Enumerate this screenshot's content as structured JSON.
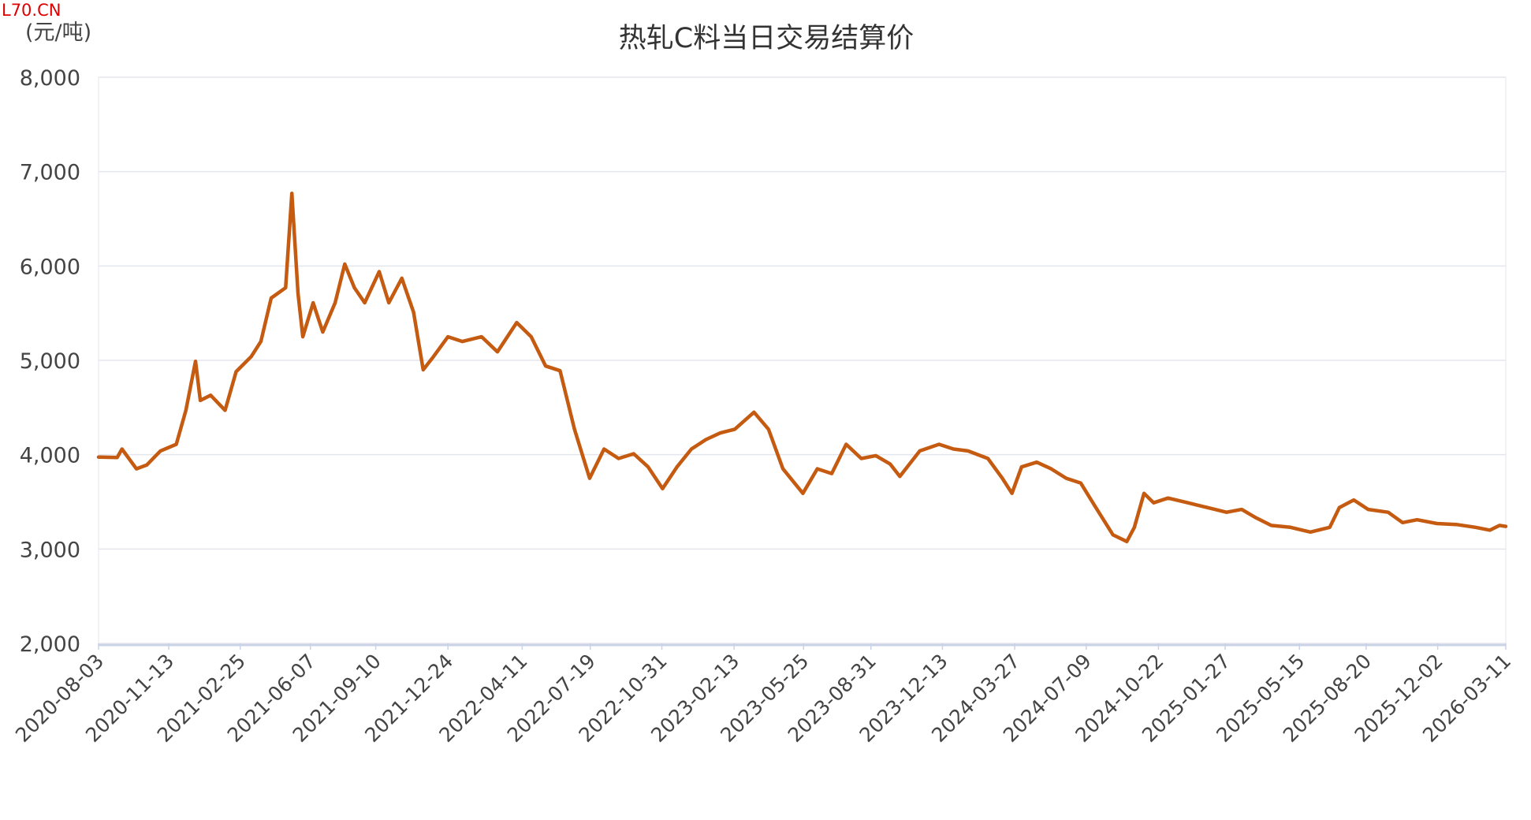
{
  "watermark": "L70.CN",
  "chart_data": {
    "type": "line",
    "title": "热轧C料当日交易结算价",
    "y_label": "(元/吨)",
    "x": [
      "2020-08-03",
      "2020-08-30",
      "2020-09-06",
      "2020-09-27",
      "2020-10-12",
      "2020-11-01",
      "2020-11-24",
      "2020-12-08",
      "2020-12-22",
      "2020-12-29",
      "2021-01-13",
      "2021-02-03",
      "2021-02-19",
      "2021-03-13",
      "2021-03-27",
      "2021-04-11",
      "2021-05-02",
      "2021-05-11",
      "2021-05-20",
      "2021-05-27",
      "2021-06-11",
      "2021-06-25",
      "2021-07-13",
      "2021-07-27",
      "2021-08-10",
      "2021-08-25",
      "2021-09-15",
      "2021-09-29",
      "2021-10-18",
      "2021-11-04",
      "2021-11-18",
      "2021-12-03",
      "2021-12-24",
      "2022-01-14",
      "2022-02-11",
      "2022-03-06",
      "2022-04-03",
      "2022-04-24",
      "2022-05-15",
      "2022-06-05",
      "2022-06-26",
      "2022-07-18",
      "2022-08-08",
      "2022-08-29",
      "2022-09-20",
      "2022-10-11",
      "2022-11-01",
      "2022-11-22",
      "2022-12-13",
      "2023-01-03",
      "2023-01-24",
      "2023-02-14",
      "2023-03-14",
      "2023-04-04",
      "2023-04-25",
      "2023-05-24",
      "2023-06-14",
      "2023-07-05",
      "2023-07-26",
      "2023-08-17",
      "2023-09-07",
      "2023-09-28",
      "2023-10-12",
      "2023-11-10",
      "2023-12-08",
      "2023-12-29",
      "2024-01-19",
      "2024-02-17",
      "2024-03-09",
      "2024-03-23",
      "2024-04-06",
      "2024-04-28",
      "2024-05-19",
      "2024-06-10",
      "2024-07-01",
      "2024-07-23",
      "2024-08-17",
      "2024-09-06",
      "2024-09-17",
      "2024-10-01",
      "2024-10-15",
      "2024-11-05",
      "2024-12-04",
      "2025-01-01",
      "2025-01-29",
      "2025-02-20",
      "2025-03-13",
      "2025-04-04",
      "2025-05-02",
      "2025-05-31",
      "2025-06-28",
      "2025-07-12",
      "2025-08-02",
      "2025-08-23",
      "2025-09-21",
      "2025-10-12",
      "2025-11-02",
      "2025-12-01",
      "2025-12-29",
      "2026-01-26",
      "2026-02-16",
      "2026-03-02",
      "2026-03-11"
    ],
    "series": [
      {
        "name": "热轧C料当日交易结算价",
        "color": "#c55a11",
        "values": [
          3975,
          3970,
          4060,
          3850,
          3890,
          4040,
          4110,
          4470,
          4990,
          4575,
          4630,
          4470,
          4880,
          5040,
          5200,
          5660,
          5770,
          6770,
          5710,
          5250,
          5610,
          5300,
          5610,
          6020,
          5770,
          5610,
          5940,
          5610,
          5870,
          5510,
          4900,
          5040,
          5250,
          5200,
          5250,
          5090,
          5400,
          5250,
          4940,
          4890,
          4270,
          3750,
          4060,
          3960,
          4010,
          3870,
          3640,
          3870,
          4060,
          4160,
          4230,
          4270,
          4450,
          4270,
          3850,
          3590,
          3850,
          3800,
          4110,
          3960,
          3990,
          3900,
          3770,
          4040,
          4110,
          4060,
          4040,
          3960,
          3750,
          3590,
          3870,
          3920,
          3850,
          3750,
          3700,
          3440,
          3150,
          3080,
          3230,
          3590,
          3490,
          3540,
          3490,
          3440,
          3390,
          3420,
          3330,
          3250,
          3230,
          3180,
          3230,
          3440,
          3520,
          3420,
          3390,
          3280,
          3310,
          3270,
          3260,
          3230,
          3200,
          3250,
          3240
        ]
      }
    ],
    "xlim": [
      "2020-08-03",
      "2026-03-11"
    ],
    "xticks": [
      "2020-08-03",
      "2020-11-13",
      "2021-02-25",
      "2021-06-07",
      "2021-09-10",
      "2021-12-24",
      "2022-04-11",
      "2022-07-19",
      "2022-10-31",
      "2023-02-13",
      "2023-05-25",
      "2023-08-31",
      "2023-12-13",
      "2024-03-27",
      "2024-07-09",
      "2024-10-22",
      "2025-01-27",
      "2025-05-15",
      "2025-08-20",
      "2025-12-02",
      "2026-03-11"
    ],
    "ylim": [
      2000,
      8000
    ],
    "yticks": [
      {
        "value": 2000,
        "label": "2,000"
      },
      {
        "value": 3000,
        "label": "3,000"
      },
      {
        "value": 4000,
        "label": "4,000"
      },
      {
        "value": 5000,
        "label": "5,000"
      },
      {
        "value": 6000,
        "label": "6,000"
      },
      {
        "value": 7000,
        "label": "7,000"
      },
      {
        "value": 8000,
        "label": "8,000"
      }
    ],
    "grid": true
  }
}
